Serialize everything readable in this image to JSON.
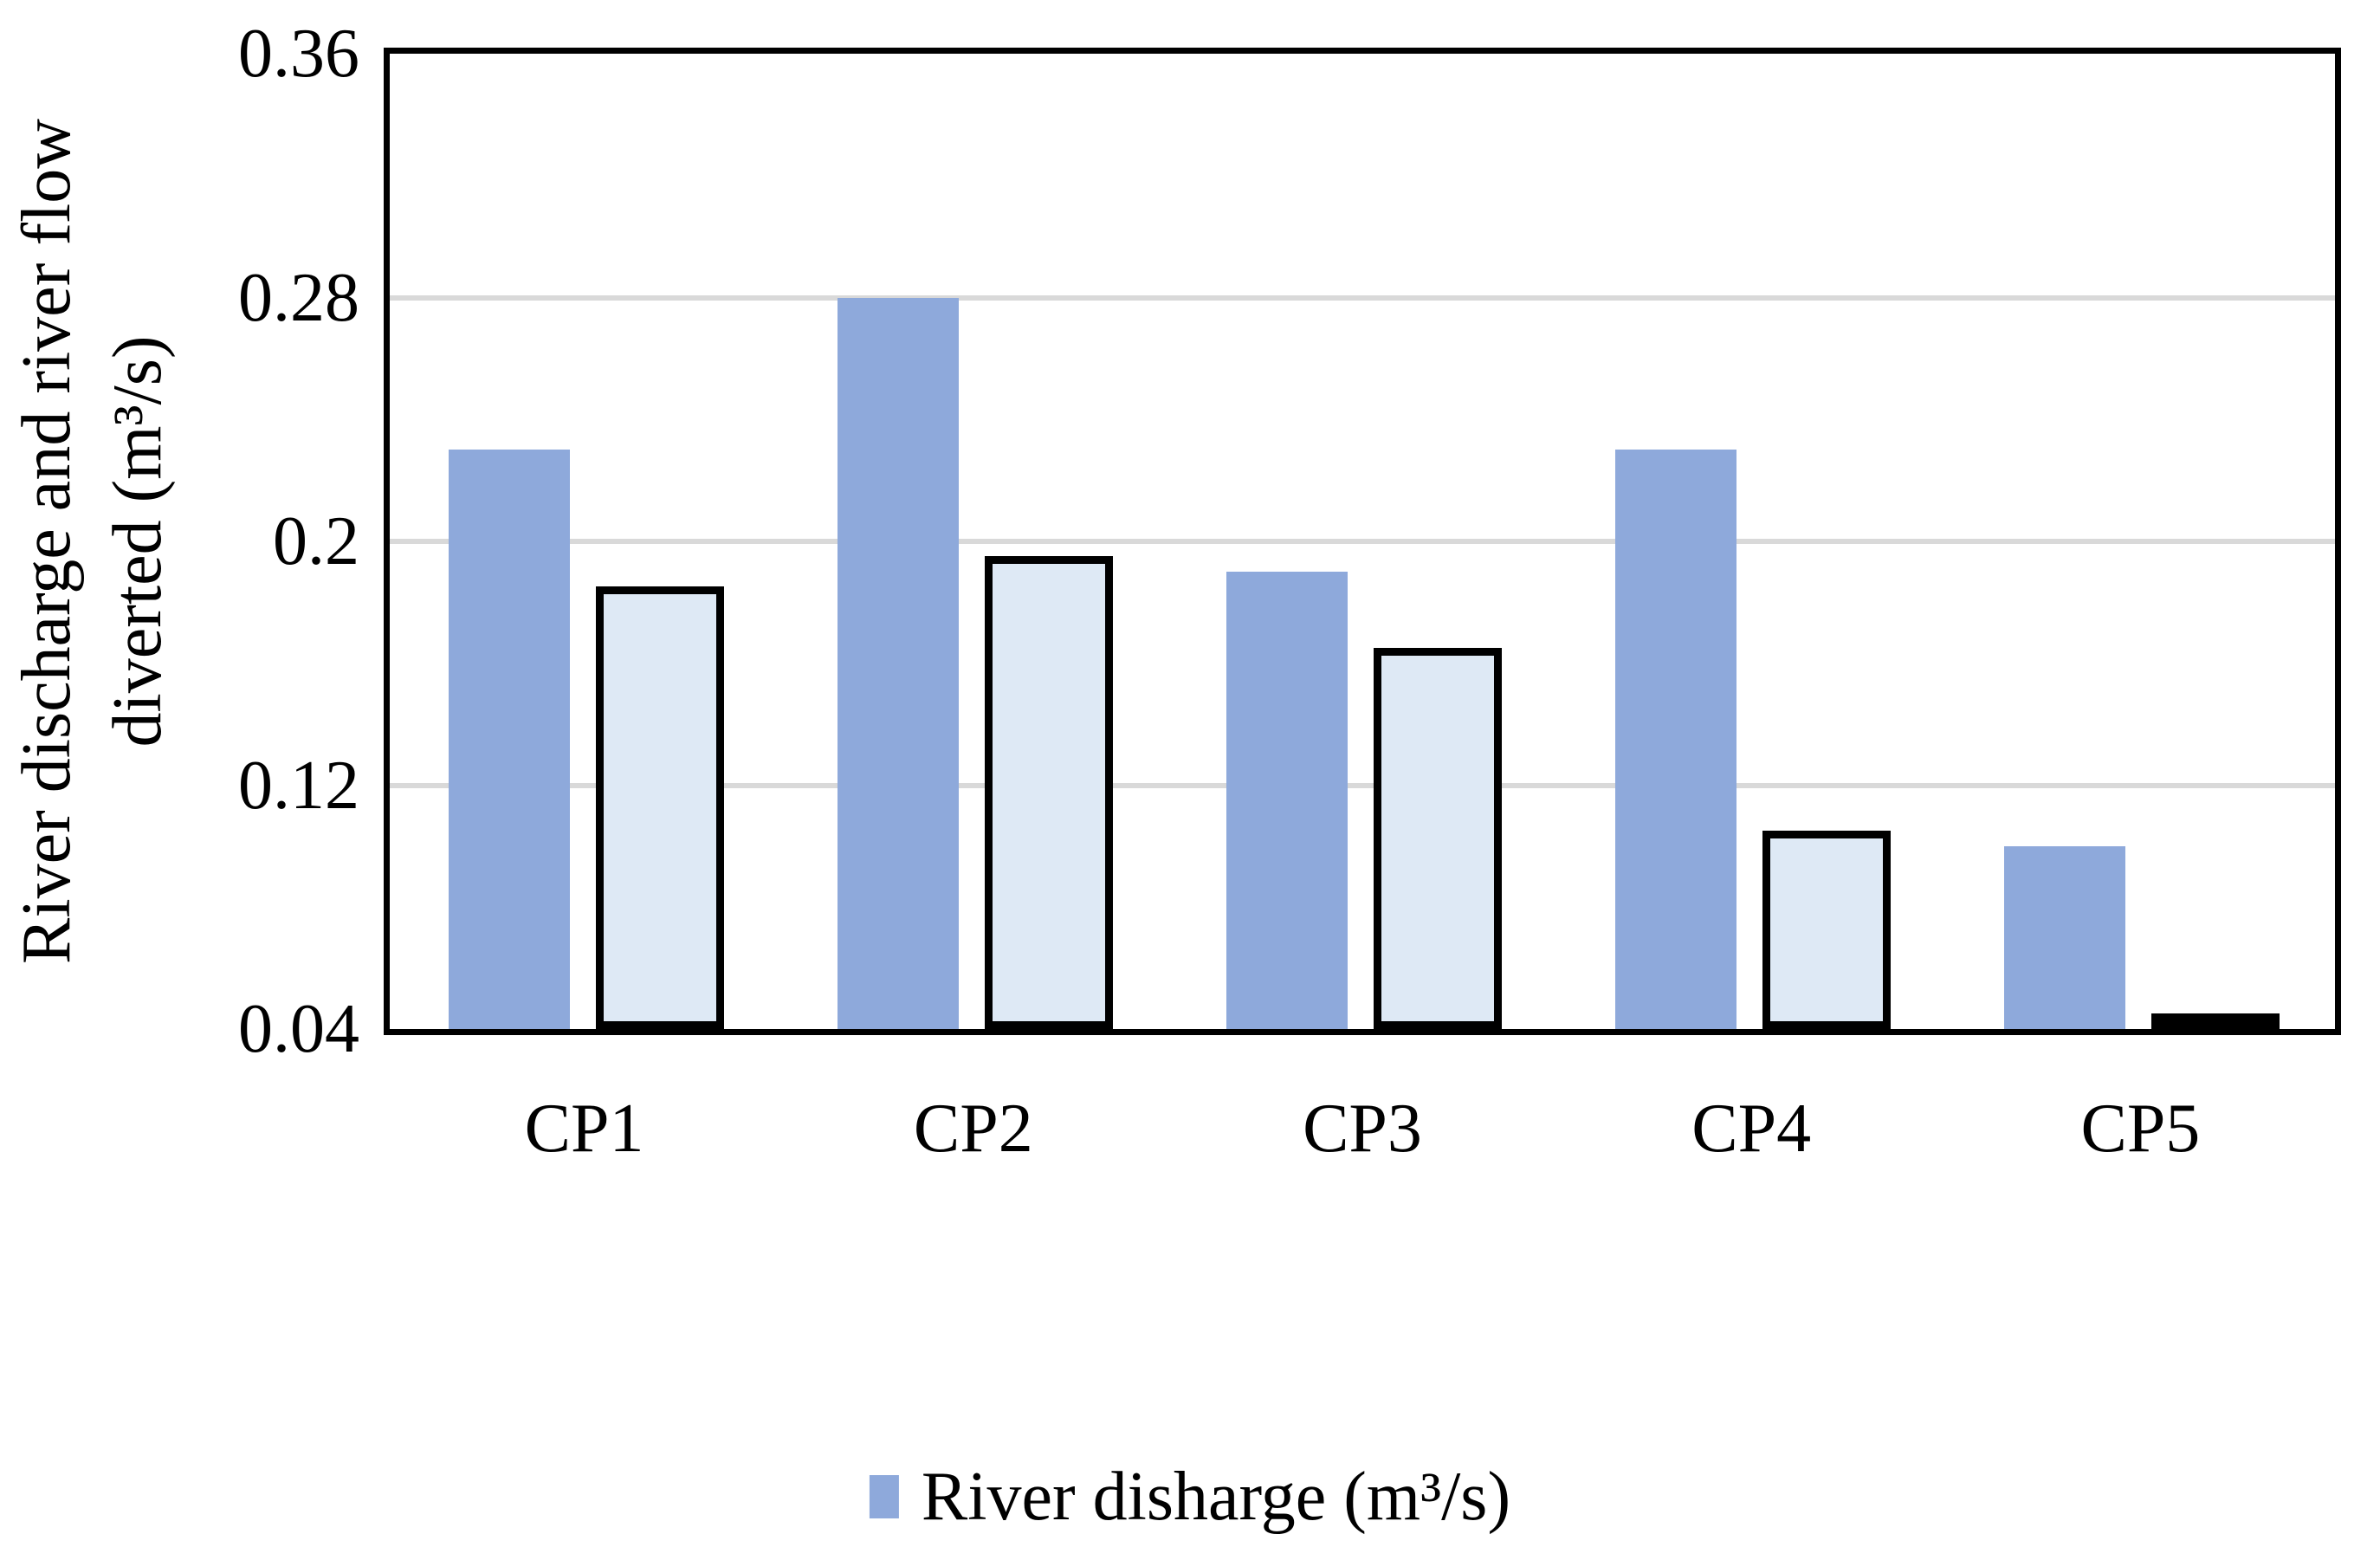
{
  "chart_data": {
    "type": "bar",
    "title": "",
    "categories": [
      "CP1",
      "CP2",
      "CP3",
      "CP4",
      "CP5"
    ],
    "series": [
      {
        "name": "River disharge (m³/s)",
        "color": "#8EA9DB",
        "outline": null,
        "values": [
          0.23,
          0.28,
          0.19,
          0.23,
          0.1
        ]
      },
      {
        "name": "River flow diverted (m³/s)",
        "color": "#DEE9F5",
        "outline": "#000000",
        "values": [
          0.18,
          0.19,
          0.16,
          0.1,
          0.04
        ]
      }
    ],
    "xlabel": "",
    "ylabel_line1": "River discharge and river flow",
    "ylabel_line2": "diverted (m³/s)",
    "ylim": [
      0.04,
      0.36
    ],
    "yticks": [
      0.36,
      0.28,
      0.2,
      0.12,
      0.04
    ],
    "ytick_labels": [
      "0.36",
      "0.28",
      "0.2",
      "0.12",
      "0.04"
    ],
    "grid": true,
    "gridline_color": "#D9D9D9",
    "axis_color": "#000000",
    "legend_position": "bottom-center"
  },
  "legend": {
    "items": [
      {
        "label": "River disharge (m³/s)",
        "color": "#8EA9DB"
      }
    ]
  }
}
